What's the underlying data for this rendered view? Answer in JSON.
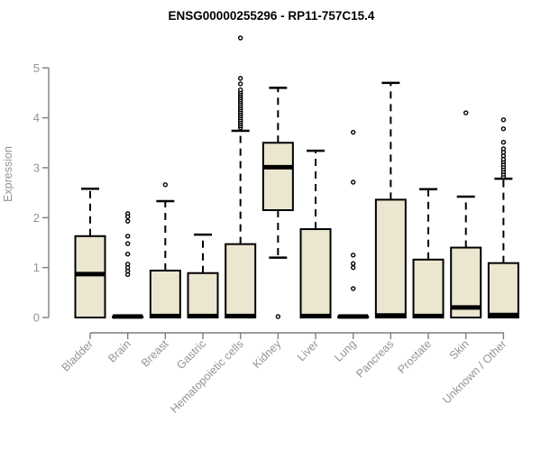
{
  "chart_data": {
    "type": "box",
    "title": "ENSG00000255296 - RP11-757C15.4",
    "ylabel": "Expression",
    "xlabel": "",
    "ylim": [
      0,
      5
    ],
    "yticks": [
      0,
      1,
      2,
      3,
      4,
      5
    ],
    "grid": false,
    "legend": null,
    "style": {
      "box_fill": "#ebe6cf",
      "box_stroke": "#000000",
      "median_color": "#000000",
      "whisker_color": "#000000",
      "axis_color": "#7d7d7d",
      "label_color": "#949494",
      "title_color": "#000000",
      "background": "#ffffff"
    },
    "categories": [
      "Bladder",
      "Brain",
      "Breast",
      "Gastric",
      "Hematopoietic cells",
      "Kidney",
      "Liver",
      "Lung",
      "Pancreas",
      "Prostate",
      "Skin",
      "Unknown / Other"
    ],
    "boxes": [
      {
        "category": "Bladder",
        "slug": "bladder",
        "q1": 0,
        "median": 0.87,
        "q3": 1.63,
        "whisker_low": 0,
        "whisker_high": 2.58,
        "outliers": []
      },
      {
        "category": "Brain",
        "slug": "brain",
        "q1": 0,
        "median": 0.02,
        "q3": 0.02,
        "whisker_low": 0,
        "whisker_high": 0.02,
        "outliers": [
          2.08,
          2.02,
          1.93,
          1.63,
          1.48,
          1.27,
          1.07,
          1.0,
          0.93,
          0.86
        ]
      },
      {
        "category": "Breast",
        "slug": "breast",
        "q1": 0,
        "median": 0.03,
        "q3": 0.94,
        "whisker_low": 0,
        "whisker_high": 2.33,
        "outliers": [
          2.66
        ]
      },
      {
        "category": "Gastric",
        "slug": "gastric",
        "q1": 0,
        "median": 0.03,
        "q3": 0.89,
        "whisker_low": 0,
        "whisker_high": 1.66,
        "outliers": []
      },
      {
        "category": "Hematopoietic cells",
        "slug": "hematopoietic-cells",
        "q1": 0,
        "median": 0.03,
        "q3": 1.47,
        "whisker_low": 0,
        "whisker_high": 3.74,
        "outliers": [
          3.8,
          3.84,
          3.88,
          3.92,
          3.96,
          4.0,
          4.04,
          4.08,
          4.12,
          4.16,
          4.2,
          4.24,
          4.28,
          4.32,
          4.36,
          4.4,
          4.44,
          4.48,
          4.52,
          4.56,
          4.68,
          4.79,
          5.6
        ]
      },
      {
        "category": "Kidney",
        "slug": "kidney",
        "q1": 2.15,
        "median": 3.01,
        "q3": 3.5,
        "whisker_low": 1.2,
        "whisker_high": 4.6,
        "outliers": [
          0.02
        ]
      },
      {
        "category": "Liver",
        "slug": "liver",
        "q1": 0,
        "median": 0.03,
        "q3": 1.77,
        "whisker_low": 0,
        "whisker_high": 3.34,
        "outliers": []
      },
      {
        "category": "Lung",
        "slug": "lung",
        "q1": 0,
        "median": 0.02,
        "q3": 0.02,
        "whisker_low": 0,
        "whisker_high": 0.02,
        "outliers": [
          3.71,
          2.71,
          1.25,
          1.08,
          1.0,
          0.58
        ]
      },
      {
        "category": "Pancreas",
        "slug": "pancreas",
        "q1": 0,
        "median": 0.04,
        "q3": 2.36,
        "whisker_low": 0,
        "whisker_high": 4.7,
        "outliers": []
      },
      {
        "category": "Prostate",
        "slug": "prostate",
        "q1": 0,
        "median": 0.03,
        "q3": 1.16,
        "whisker_low": 0,
        "whisker_high": 2.57,
        "outliers": []
      },
      {
        "category": "Skin",
        "slug": "skin",
        "q1": 0,
        "median": 0.2,
        "q3": 1.4,
        "whisker_low": 0,
        "whisker_high": 2.42,
        "outliers": [
          4.1
        ]
      },
      {
        "category": "Unknown / Other",
        "slug": "unknown-other",
        "q1": 0,
        "median": 0.05,
        "q3": 1.09,
        "whisker_low": 0,
        "whisker_high": 2.78,
        "outliers": [
          2.82,
          2.87,
          2.92,
          2.97,
          3.02,
          3.07,
          3.12,
          3.17,
          3.24,
          3.31,
          3.38,
          3.51,
          3.78,
          3.96
        ]
      }
    ]
  }
}
